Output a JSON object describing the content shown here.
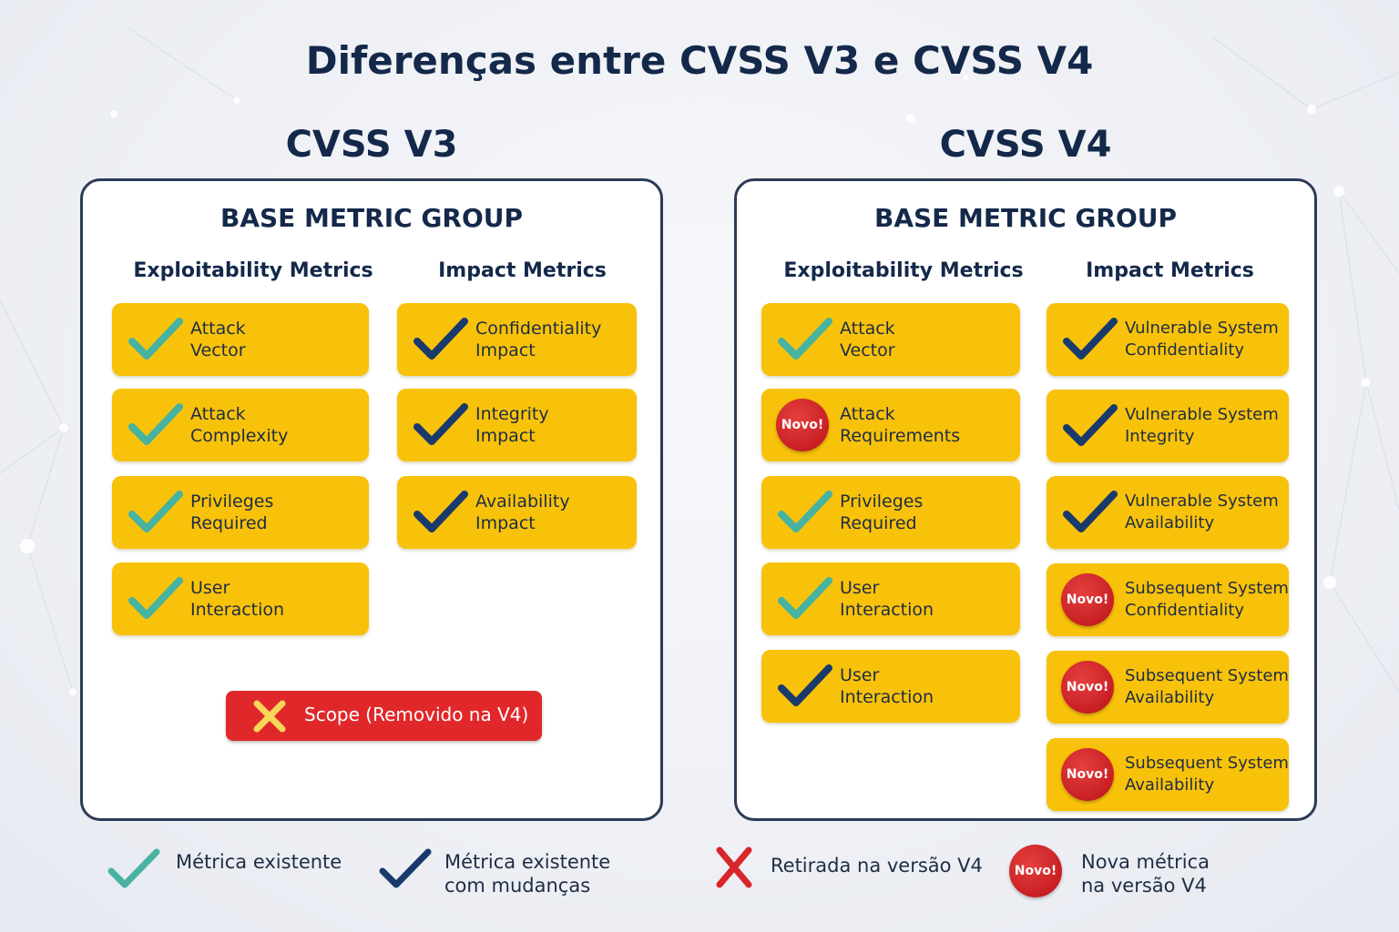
{
  "title": {
    "prefix": "Diferenças entre ",
    "v3": "CVSS V3",
    "mid": " e ",
    "v4": "CVSS V4"
  },
  "colors": {
    "teal_check": "#47b3a0",
    "navy_check": "#1a3a6b",
    "card_yellow": "#f8c20a",
    "removed_red": "#e0282b",
    "badge_red": "#c91f24",
    "cross_yellow": "#f7d659"
  },
  "v3": {
    "heading": "CVSS V3",
    "group_title": "BASE METRIC GROUP",
    "exploitability_header": "Exploitability Metrics",
    "impact_header": "Impact Metrics",
    "exploitability": [
      {
        "icon": "teal-check-icon",
        "line1": "Attack",
        "line2": "Vector"
      },
      {
        "icon": "teal-check-icon",
        "line1": "Attack",
        "line2": "Complexity"
      },
      {
        "icon": "teal-check-icon",
        "line1": "Privileges",
        "line2": "Required"
      },
      {
        "icon": "teal-check-icon",
        "line1": "User",
        "line2": "Interaction"
      }
    ],
    "impact": [
      {
        "icon": "navy-check-icon",
        "line1": "Confidentiality",
        "line2": "Impact"
      },
      {
        "icon": "navy-check-icon",
        "line1": "Integrity",
        "line2": "Impact"
      },
      {
        "icon": "navy-check-icon",
        "line1": "Availability",
        "line2": "Impact"
      }
    ],
    "removed": {
      "icon": "cross-icon",
      "label": "Scope (Removido na V4)"
    }
  },
  "v4": {
    "heading": "CVSS V4",
    "group_title": "BASE METRIC GROUP",
    "exploitability_header": "Exploitability Metrics",
    "impact_header": "Impact Metrics",
    "badge_text": "Novo!",
    "exploitability": [
      {
        "icon": "teal-check-icon",
        "line1": "Attack",
        "line2": "Vector"
      },
      {
        "icon": "novo-badge-icon",
        "line1": "Attack",
        "line2": "Requirements"
      },
      {
        "icon": "teal-check-icon",
        "line1": "Privileges",
        "line2": "Required"
      },
      {
        "icon": "teal-check-icon",
        "line1": "User",
        "line2": "Interaction"
      },
      {
        "icon": "navy-check-icon",
        "line1": "User",
        "line2": "Interaction"
      }
    ],
    "impact": [
      {
        "icon": "navy-check-icon",
        "line1": "Vulnerable System",
        "line2": "Confidentiality"
      },
      {
        "icon": "navy-check-icon",
        "line1": "Vulnerable System",
        "line2": "Integrity"
      },
      {
        "icon": "navy-check-icon",
        "line1": "Vulnerable System",
        "line2": "Availability"
      },
      {
        "icon": "novo-badge-icon",
        "line1": "Subsequent System",
        "line2": "Confidentiality"
      },
      {
        "icon": "novo-badge-icon",
        "line1": "Subsequent System",
        "line2": "Availability"
      },
      {
        "icon": "novo-badge-icon",
        "line1": "Subsequent System",
        "line2": "Availability"
      }
    ]
  },
  "legend": {
    "existing": {
      "icon": "teal-check-icon",
      "line1": "Métrica existente"
    },
    "changed": {
      "icon": "navy-check-icon",
      "line1": "Métrica existente",
      "line2": "com mudanças"
    },
    "removed": {
      "icon": "red-cross-icon",
      "line1": "Retirada na versão V4"
    },
    "new": {
      "icon": "novo-badge-icon",
      "badge_text": "Novo!",
      "line1": "Nova métrica",
      "line2": "na versão V4"
    }
  }
}
